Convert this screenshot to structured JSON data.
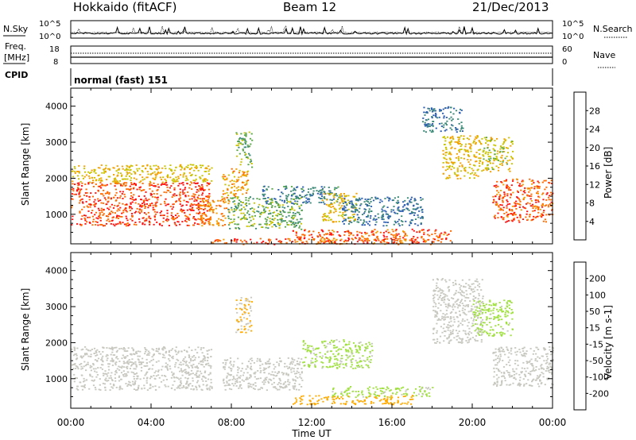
{
  "header": {
    "station": "Hokkaido (fitACF)",
    "beam": "Beam 12",
    "date": "21/Dec/2013"
  },
  "top_panels": {
    "nsky_label": "N.Sky",
    "nsearch_label": "N.Search",
    "freq_label_line1": "Freq.",
    "freq_label_line2": "[MHz]",
    "nave_label": "Nave",
    "cpid_label": "CPID",
    "cpid_value": "normal (fast) 151",
    "noise_ticks": [
      "10^5",
      "10^0"
    ],
    "freq_ticks": [
      "18",
      "8"
    ],
    "nave_ticks": [
      "60",
      "0"
    ]
  },
  "colors": {
    "power_scale": [
      "#1f1fff",
      "#2e5fb0",
      "#3d8a78",
      "#5aa84a",
      "#c9c400",
      "#f4a000",
      "#ff6a00",
      "#ff1010"
    ],
    "velocity_scale": [
      "#ff0000",
      "#ff4400",
      "#ff8800",
      "#ffaa00",
      "#c8c8c0",
      "#a0e040",
      "#40b020",
      "#207a60",
      "#1a2ab0"
    ]
  },
  "chart_data": [
    {
      "type": "heatmap",
      "name": "power",
      "xlabel": "Time UT",
      "ylabel": "Slant Range [km]",
      "xlim": [
        0,
        24
      ],
      "ylim": [
        180,
        4500
      ],
      "x_ticks": [
        "00:00",
        "04:00",
        "08:00",
        "12:00",
        "16:00",
        "20:00",
        "00:00"
      ],
      "y_ticks": [
        1000,
        2000,
        3000,
        4000
      ],
      "colorbar": {
        "label": "Power [dB]",
        "ticks": [
          4,
          8,
          12,
          16,
          20,
          24,
          28
        ],
        "range": [
          0,
          32
        ]
      },
      "echo_regions": [
        {
          "t0": 0.0,
          "t1": 6.9,
          "r0": 700,
          "r1": 1900,
          "value": 28
        },
        {
          "t0": 0.0,
          "t1": 7.0,
          "r0": 1900,
          "r1": 2400,
          "value": 20
        },
        {
          "t0": 6.3,
          "t1": 7.9,
          "r0": 700,
          "r1": 1500,
          "value": 24
        },
        {
          "t0": 7.5,
          "t1": 8.8,
          "r0": 1500,
          "r1": 2300,
          "value": 22
        },
        {
          "t0": 8.2,
          "t1": 9.0,
          "r0": 2300,
          "r1": 3300,
          "value": 14
        },
        {
          "t0": 7.8,
          "t1": 11.5,
          "r0": 600,
          "r1": 1500,
          "value": 14
        },
        {
          "t0": 9.5,
          "t1": 13.5,
          "r0": 1300,
          "r1": 1800,
          "value": 9
        },
        {
          "t0": 12.5,
          "t1": 14.2,
          "r0": 800,
          "r1": 1600,
          "value": 20
        },
        {
          "t0": 13.5,
          "t1": 17.5,
          "r0": 700,
          "r1": 1500,
          "value": 8
        },
        {
          "t0": 11.0,
          "t1": 19.0,
          "r0": 250,
          "r1": 600,
          "value": 27
        },
        {
          "t0": 7.0,
          "t1": 18.0,
          "r0": 180,
          "r1": 350,
          "value": 26
        },
        {
          "t0": 17.5,
          "t1": 19.5,
          "r0": 3300,
          "r1": 4000,
          "value": 8
        },
        {
          "t0": 18.5,
          "t1": 20.5,
          "r0": 2000,
          "r1": 3200,
          "value": 20
        },
        {
          "t0": 20.5,
          "t1": 22.0,
          "r0": 2200,
          "r1": 3200,
          "value": 18
        },
        {
          "t0": 21.0,
          "t1": 24.0,
          "r0": 800,
          "r1": 2000,
          "value": 27
        }
      ]
    },
    {
      "type": "heatmap",
      "name": "velocity",
      "xlabel": "Time UT",
      "ylabel": "Slant Range [km]",
      "xlim": [
        0,
        24
      ],
      "ylim": [
        180,
        4500
      ],
      "x_ticks": [
        "00:00",
        "04:00",
        "08:00",
        "12:00",
        "16:00",
        "20:00",
        "00:00"
      ],
      "y_ticks": [
        1000,
        2000,
        3000,
        4000
      ],
      "colorbar": {
        "label": "Velocity [m s-1]",
        "ticks": [
          -200,
          -100,
          -50,
          -15,
          15,
          50,
          100,
          200
        ],
        "range": [
          -250,
          250
        ]
      },
      "echo_regions": [
        {
          "t0": 0.0,
          "t1": 7.0,
          "r0": 700,
          "r1": 1900,
          "value": 0
        },
        {
          "t0": 7.5,
          "t1": 11.5,
          "r0": 700,
          "r1": 1600,
          "value": 0
        },
        {
          "t0": 8.2,
          "t1": 9.0,
          "r0": 2300,
          "r1": 3300,
          "value": -30
        },
        {
          "t0": 11.5,
          "t1": 15.0,
          "r0": 1300,
          "r1": 2100,
          "value": 40
        },
        {
          "t0": 13.0,
          "t1": 18.0,
          "r0": 500,
          "r1": 800,
          "value": 40
        },
        {
          "t0": 11.0,
          "t1": 17.0,
          "r0": 300,
          "r1": 550,
          "value": -60
        },
        {
          "t0": 18.0,
          "t1": 20.5,
          "r0": 2000,
          "r1": 3800,
          "value": 0
        },
        {
          "t0": 20.0,
          "t1": 22.0,
          "r0": 2200,
          "r1": 3200,
          "value": 45
        },
        {
          "t0": 21.0,
          "t1": 24.0,
          "r0": 800,
          "r1": 1900,
          "value": 0
        }
      ]
    }
  ]
}
